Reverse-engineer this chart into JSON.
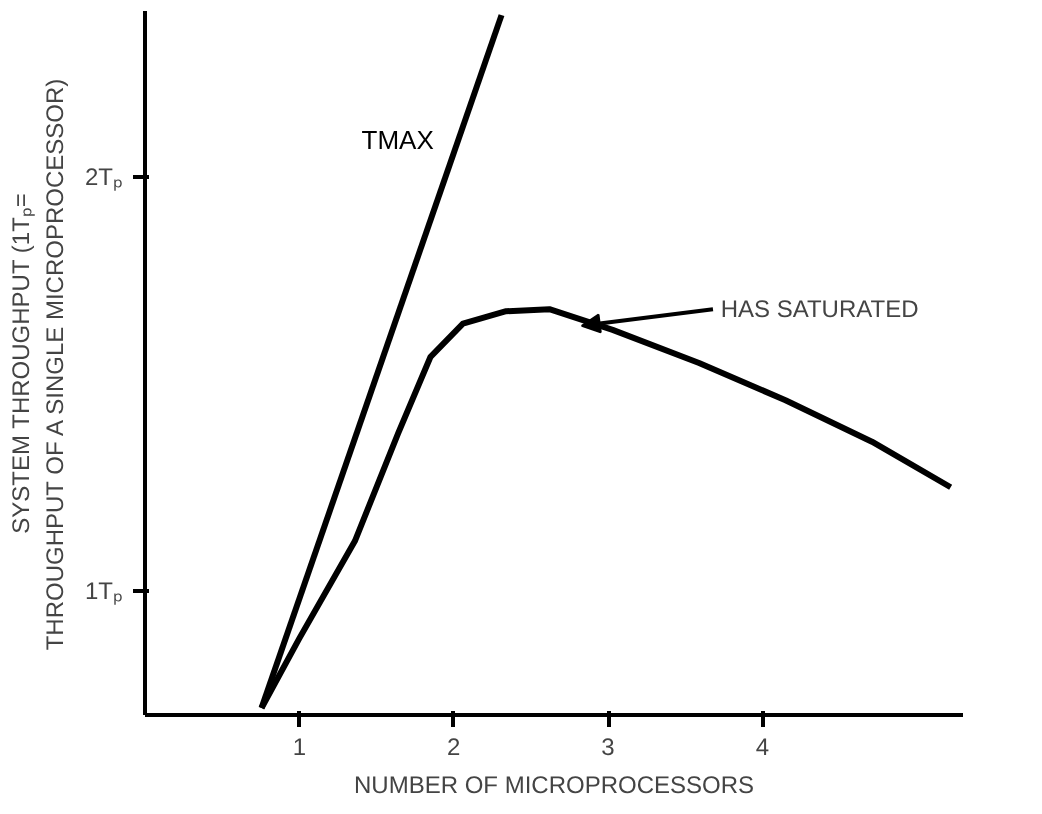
{
  "chart_data": {
    "type": "line",
    "xlabel": "NUMBER OF MICROPROCESSORS",
    "ylabel": "SYSTEM THROUGHPUT (1Tₚ=\nTHROUGHPUT OF A SINGLE MICROPROCESSOR)",
    "xlim": [
      0,
      5.3
    ],
    "ylim": [
      0.7,
      2.4
    ],
    "xticks": [
      1,
      2,
      3,
      4
    ],
    "yticks": [
      {
        "value": 1,
        "label": "1Tₚ"
      },
      {
        "value": 2,
        "label": "2Tₚ"
      }
    ],
    "grid": false,
    "marker": "none",
    "line_style": "solid",
    "series": [
      {
        "name": "TMAX",
        "color": "#000000",
        "x": [
          0.755,
          2.31
        ],
        "values": [
          0.717,
          2.39
        ]
      },
      {
        "color": "#000000",
        "x": [
          0.755,
          1.0,
          1.36,
          1.64,
          1.85,
          2.06,
          2.34,
          2.62,
          3.03,
          3.59,
          4.15,
          4.71,
          5.22
        ],
        "values": [
          0.717,
          0.885,
          1.12,
          1.38,
          1.565,
          1.645,
          1.675,
          1.68,
          1.63,
          1.55,
          1.46,
          1.36,
          1.25
        ]
      }
    ],
    "annotations": [
      {
        "text": "HAS SATURATED",
        "x": 2.83,
        "y": 1.64
      }
    ]
  }
}
